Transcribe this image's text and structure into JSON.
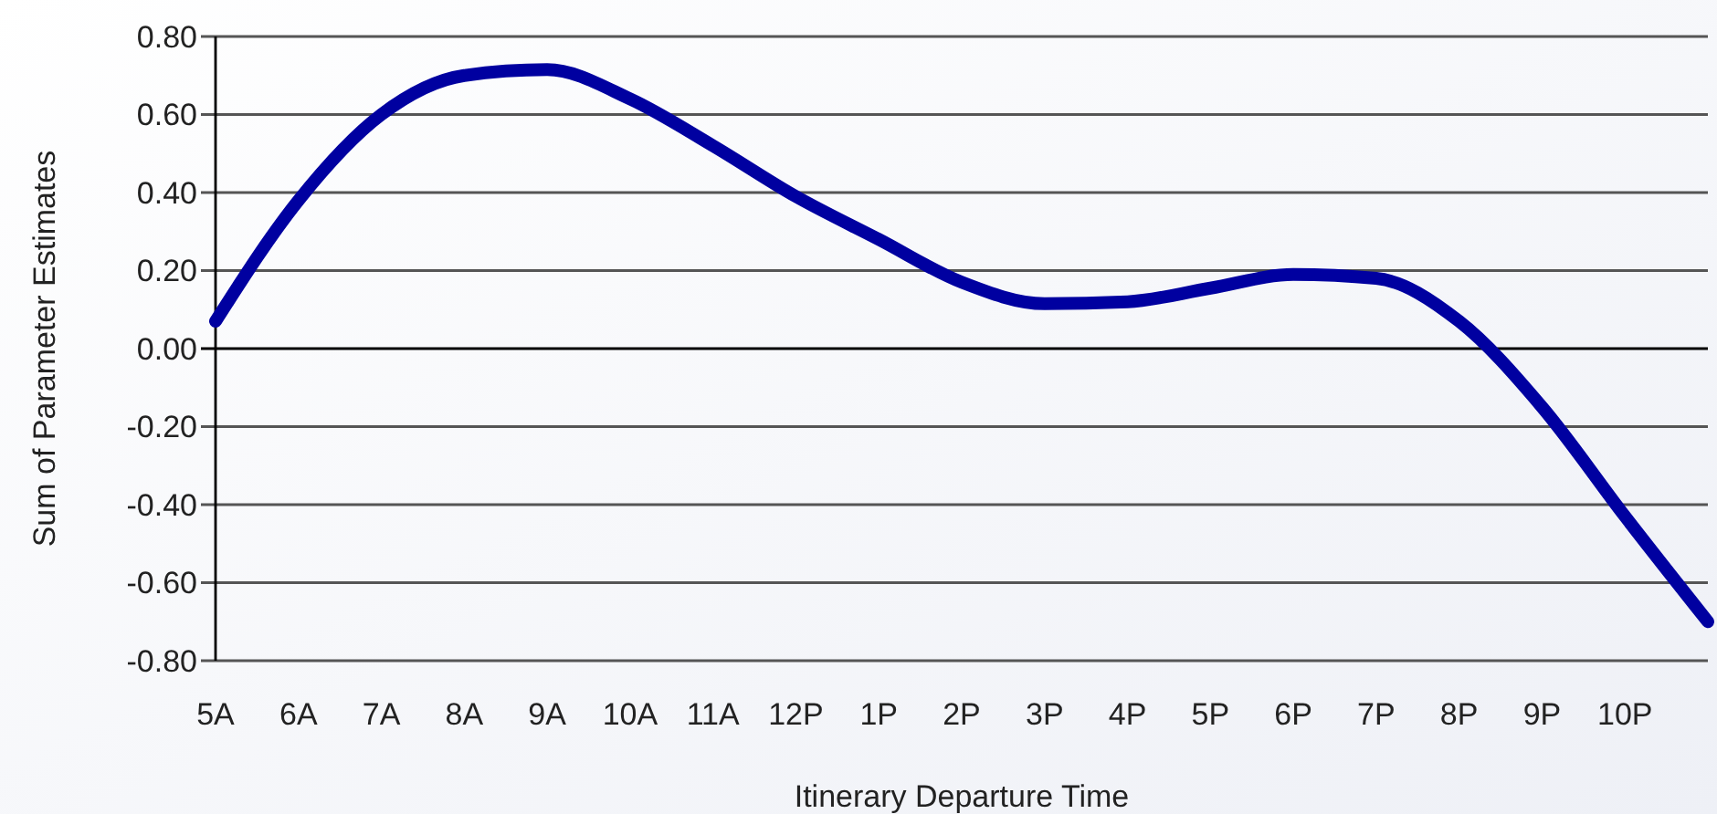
{
  "chart_data": {
    "type": "line",
    "xlabel": "Itinerary Departure Time",
    "ylabel": "Sum of Parameter Estimates",
    "categories": [
      "5A",
      "6A",
      "7A",
      "8A",
      "9A",
      "10A",
      "11A",
      "12P",
      "1P",
      "2P",
      "3P",
      "4P",
      "5P",
      "6P",
      "7P",
      "8P",
      "9P",
      "10P",
      null
    ],
    "series": [
      {
        "color": "#0000a0",
        "values": [
          0.07,
          0.38,
          0.6,
          0.7,
          0.715,
          0.64,
          0.52,
          0.39,
          0.28,
          0.17,
          0.115,
          0.12,
          0.155,
          0.19,
          0.18,
          0.07,
          -0.15,
          -0.43,
          -0.7
        ]
      }
    ],
    "ylim": [
      -0.8,
      0.8
    ],
    "yticks": [
      {
        "value": 0.8,
        "label": "0.80"
      },
      {
        "value": 0.6,
        "label": "0.60"
      },
      {
        "value": 0.4,
        "label": "0.40"
      },
      {
        "value": 0.2,
        "label": "0.20"
      },
      {
        "value": 0,
        "label": "0.00"
      },
      {
        "value": -0.2,
        "label": "-0.20"
      },
      {
        "value": -0.4,
        "label": "-0.40"
      },
      {
        "value": -0.6,
        "label": "-0.60"
      },
      {
        "value": -0.8,
        "label": "-0.80"
      }
    ],
    "grid": "y",
    "marker": "none",
    "line_style": "solid"
  }
}
